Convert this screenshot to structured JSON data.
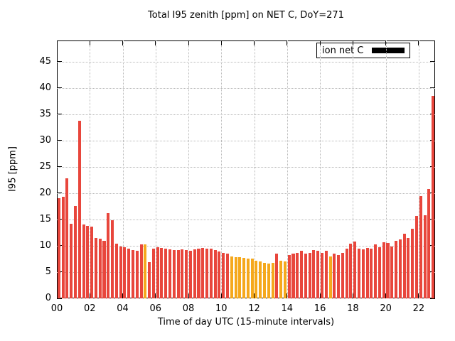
{
  "title": "Total I95 zenith [ppm] on NET C, DoY=271",
  "axes": {
    "y_label": "I95 [ppm]",
    "x_label": "Time of day UTC (15-minute intervals)",
    "y_ticks": [
      0,
      5,
      10,
      15,
      20,
      25,
      30,
      35,
      40,
      45
    ],
    "x_ticks": [
      "00",
      "02",
      "04",
      "06",
      "08",
      "10",
      "12",
      "14",
      "16",
      "18",
      "20",
      "22"
    ]
  },
  "legend": {
    "label": "ion net C"
  },
  "colors": {
    "bar_red": "#e8463c",
    "bar_orange": "#f5a81c",
    "legend_swatch": "#000000",
    "grid": "#b8b8b8",
    "background": "#ffffff"
  },
  "chart_data": {
    "type": "bar",
    "title": "Total I95 zenith [ppm] on NET C, DoY=271",
    "xlabel": "Time of day UTC (15-minute intervals)",
    "ylabel": "I95 [ppm]",
    "x_range_hours": [
      0,
      23
    ],
    "ylim": [
      0,
      49
    ],
    "start_time": "00:00",
    "interval_minutes": 15,
    "values": [
      19.0,
      19.3,
      22.8,
      14.2,
      17.5,
      33.8,
      14.0,
      13.8,
      13.6,
      11.5,
      11.3,
      11.0,
      16.2,
      14.8,
      10.4,
      9.9,
      9.7,
      9.4,
      9.2,
      9.0,
      10.3,
      10.2,
      6.9,
      9.5,
      9.7,
      9.6,
      9.5,
      9.3,
      9.2,
      9.2,
      9.3,
      9.2,
      9.1,
      9.3,
      9.4,
      9.6,
      9.5,
      9.4,
      9.2,
      8.9,
      8.6,
      8.5,
      7.9,
      7.8,
      7.8,
      7.7,
      7.6,
      7.5,
      7.2,
      7.0,
      6.8,
      6.6,
      6.7,
      8.5,
      7.2,
      7.0,
      8.3,
      8.5,
      8.7,
      9.0,
      8.5,
      8.7,
      9.2,
      9.0,
      8.7,
      9.1,
      8.0,
      8.5,
      8.3,
      8.6,
      9.5,
      10.4,
      10.8,
      9.5,
      9.3,
      9.6,
      9.5,
      10.2,
      9.7,
      10.7,
      10.5,
      9.8,
      10.9,
      11.2,
      12.3,
      11.5,
      13.2,
      15.6,
      19.5,
      15.8,
      20.8,
      38.5
    ],
    "orange_indices": [
      21,
      42,
      43,
      44,
      45,
      46,
      47,
      48,
      49,
      50,
      51,
      52,
      54,
      55,
      66
    ],
    "grid": true,
    "legend_position": "top-right",
    "legend_entries": [
      "ion net C"
    ]
  }
}
